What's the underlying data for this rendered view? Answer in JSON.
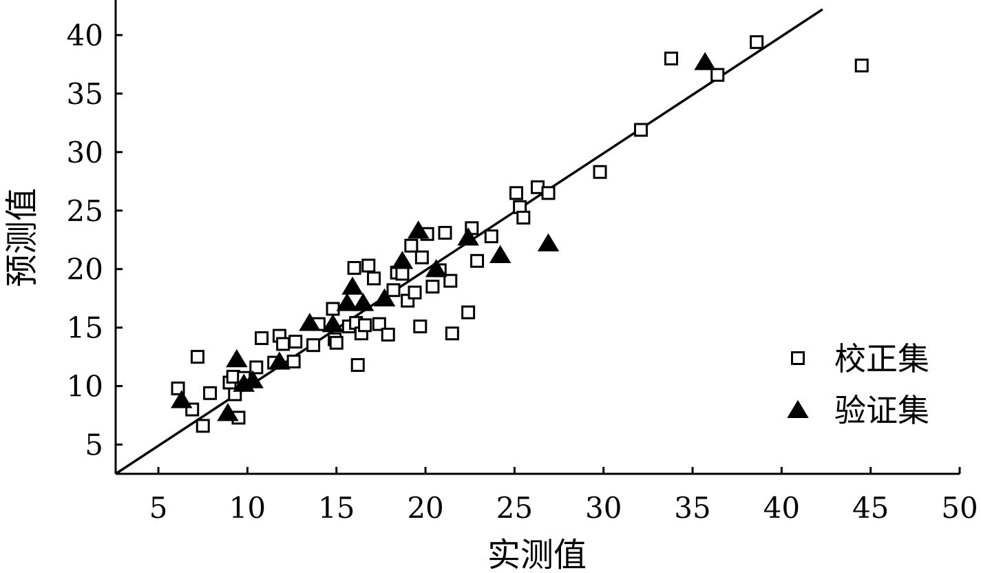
{
  "chart_data": {
    "type": "scatter",
    "title": "",
    "xlabel": "实测值",
    "ylabel": "预测值",
    "xlim": [
      2.6,
      50
    ],
    "ylim": [
      2.5,
      43
    ],
    "x_ticks": [
      5,
      10,
      15,
      20,
      25,
      30,
      35,
      40,
      45,
      50
    ],
    "y_ticks": [
      5,
      10,
      15,
      20,
      25,
      30,
      35,
      40
    ],
    "legend_position": "bottom-right",
    "grid": false,
    "fit_line": {
      "x": [
        2.6,
        42.3
      ],
      "y": [
        2.5,
        42.2
      ]
    },
    "series": [
      {
        "name": "校正集",
        "marker": "hollow-square",
        "color": "#000000",
        "points": [
          [
            6.1,
            9.8
          ],
          [
            6.9,
            8.0
          ],
          [
            7.2,
            12.5
          ],
          [
            7.5,
            6.6
          ],
          [
            7.9,
            9.4
          ],
          [
            9.0,
            10.3
          ],
          [
            9.2,
            10.8
          ],
          [
            9.3,
            9.3
          ],
          [
            9.5,
            7.3
          ],
          [
            9.8,
            10.7
          ],
          [
            10.5,
            11.6
          ],
          [
            10.8,
            14.1
          ],
          [
            11.5,
            12.0
          ],
          [
            11.8,
            14.3
          ],
          [
            12.0,
            13.6
          ],
          [
            12.6,
            12.1
          ],
          [
            12.7,
            13.8
          ],
          [
            13.7,
            13.5
          ],
          [
            14.0,
            15.3
          ],
          [
            14.8,
            16.6
          ],
          [
            14.9,
            14.0
          ],
          [
            15.0,
            13.7
          ],
          [
            15.7,
            15.1
          ],
          [
            16.0,
            20.1
          ],
          [
            16.1,
            15.4
          ],
          [
            16.2,
            11.8
          ],
          [
            16.4,
            14.5
          ],
          [
            16.6,
            15.2
          ],
          [
            16.8,
            20.3
          ],
          [
            17.1,
            19.2
          ],
          [
            17.4,
            15.3
          ],
          [
            17.9,
            14.4
          ],
          [
            18.2,
            18.2
          ],
          [
            18.4,
            19.7
          ],
          [
            18.7,
            19.6
          ],
          [
            19.0,
            17.3
          ],
          [
            19.2,
            22.0
          ],
          [
            19.4,
            18.0
          ],
          [
            19.7,
            15.1
          ],
          [
            19.8,
            21.0
          ],
          [
            20.1,
            23.0
          ],
          [
            20.4,
            18.5
          ],
          [
            20.8,
            19.9
          ],
          [
            21.1,
            23.1
          ],
          [
            21.4,
            19.0
          ],
          [
            21.5,
            14.5
          ],
          [
            22.4,
            16.3
          ],
          [
            22.6,
            23.5
          ],
          [
            22.9,
            20.7
          ],
          [
            23.7,
            22.8
          ],
          [
            25.1,
            26.5
          ],
          [
            25.3,
            25.3
          ],
          [
            25.5,
            24.4
          ],
          [
            26.3,
            27.0
          ],
          [
            26.9,
            26.5
          ],
          [
            29.8,
            28.3
          ],
          [
            32.1,
            31.9
          ],
          [
            33.8,
            38.0
          ],
          [
            36.4,
            36.6
          ],
          [
            38.6,
            39.4
          ],
          [
            44.5,
            37.4
          ]
        ]
      },
      {
        "name": "验证集",
        "marker": "filled-triangle",
        "color": "#000000",
        "points": [
          [
            6.3,
            8.7
          ],
          [
            8.9,
            7.6
          ],
          [
            9.4,
            12.2
          ],
          [
            9.8,
            10.1
          ],
          [
            10.3,
            10.4
          ],
          [
            11.8,
            12.0
          ],
          [
            13.5,
            15.3
          ],
          [
            14.8,
            15.2
          ],
          [
            15.6,
            17.0
          ],
          [
            15.9,
            18.4
          ],
          [
            16.5,
            17.0
          ],
          [
            17.7,
            17.4
          ],
          [
            18.7,
            20.6
          ],
          [
            19.6,
            23.2
          ],
          [
            20.6,
            19.9
          ],
          [
            22.4,
            22.6
          ],
          [
            24.2,
            21.1
          ],
          [
            26.9,
            22.1
          ],
          [
            35.7,
            37.6
          ]
        ]
      }
    ]
  }
}
